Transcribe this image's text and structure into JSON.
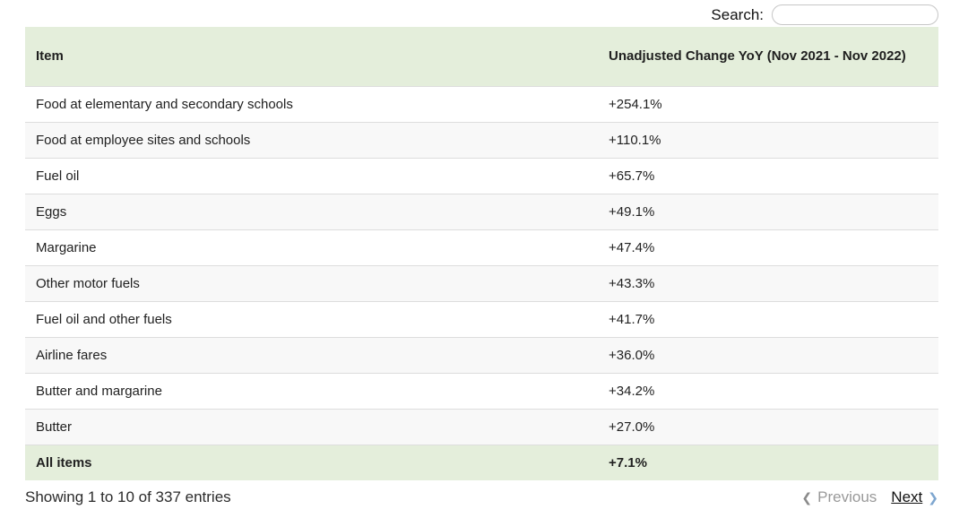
{
  "search": {
    "label": "Search:",
    "value": "",
    "placeholder": ""
  },
  "table": {
    "columns": [
      "Item",
      "Unadjusted Change YoY (Nov 2021 - Nov 2022)"
    ],
    "rows": [
      {
        "item": "Food at elementary and secondary schools",
        "value": "+254.1%"
      },
      {
        "item": "Food at employee sites and schools",
        "value": "+110.1%"
      },
      {
        "item": "Fuel oil",
        "value": "+65.7%"
      },
      {
        "item": "Eggs",
        "value": "+49.1%"
      },
      {
        "item": "Margarine",
        "value": "+47.4%"
      },
      {
        "item": "Other motor fuels",
        "value": "+43.3%"
      },
      {
        "item": "Fuel oil and other fuels",
        "value": "+41.7%"
      },
      {
        "item": "Airline fares",
        "value": "+36.0%"
      },
      {
        "item": "Butter and margarine",
        "value": "+34.2%"
      },
      {
        "item": "Butter",
        "value": "+27.0%"
      }
    ],
    "total_row": {
      "item": "All items",
      "value": "+7.1%"
    }
  },
  "footer": {
    "info": "Showing 1 to 10 of 337 entries",
    "previous_label": "Previous",
    "next_label": "Next",
    "prev_icon": "❮",
    "next_icon": "❯"
  },
  "colors": {
    "header_bg": "#e4eedb",
    "stripe_bg": "#f8f8f8",
    "row_border": "#dddddd",
    "disabled_text": "#999999",
    "next_chevron": "#7ea6cf"
  }
}
